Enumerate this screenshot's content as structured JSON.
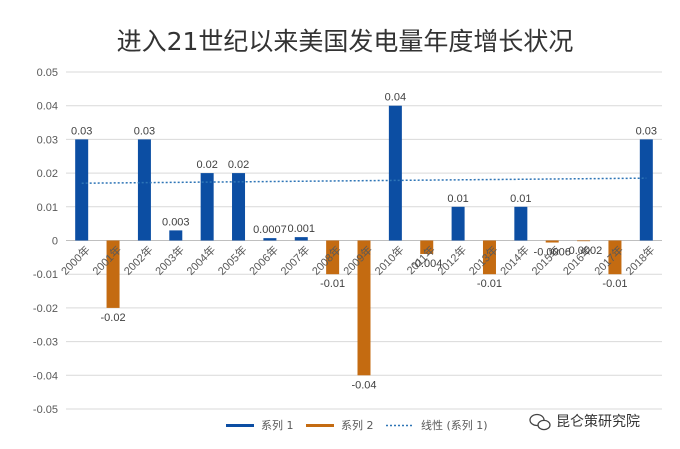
{
  "chart_data": {
    "type": "bar",
    "title": "进入21世纪以来美国发电量年度增长状况",
    "categories": [
      "2000年",
      "2001年",
      "2002年",
      "2003年",
      "2004年",
      "2005年",
      "2006年",
      "2007年",
      "2008年",
      "2009年",
      "2010年",
      "2011年",
      "2012年",
      "2013年",
      "2014年",
      "2015年",
      "2016年",
      "2017年",
      "2018年"
    ],
    "series": [
      {
        "name": "系列 1",
        "color": "#0c4ea3",
        "values": [
          0.03,
          null,
          0.03,
          0.003,
          0.02,
          0.02,
          0.0007,
          0.001,
          null,
          null,
          0.04,
          null,
          0.01,
          null,
          0.01,
          null,
          null,
          null,
          0.03
        ],
        "labels": [
          "0.03",
          null,
          "0.03",
          "0.003",
          "0.02",
          "0.02",
          "0.0007",
          "0.001",
          null,
          null,
          "0.04",
          null,
          "0.01",
          null,
          "0.01",
          null,
          null,
          null,
          "0.03"
        ]
      },
      {
        "name": "系列 2",
        "color": "#c46b11",
        "values": [
          null,
          -0.02,
          null,
          null,
          null,
          null,
          null,
          null,
          -0.01,
          -0.04,
          null,
          -0.004,
          null,
          -0.01,
          null,
          -0.0006,
          -0.0002,
          -0.01,
          null
        ],
        "labels": [
          null,
          "-0.02",
          null,
          null,
          null,
          null,
          null,
          null,
          "-0.01",
          "-0.04",
          null,
          "-0.004",
          null,
          "-0.01",
          null,
          "-0.0006",
          "-0.0002",
          "-0.01",
          null
        ]
      }
    ],
    "trendline": {
      "name": "线性 (系列 1)",
      "color": "#2e75b6",
      "start": 0.017,
      "end": 0.0185
    },
    "ylim": [
      -0.05,
      0.05
    ],
    "yticks": [
      0.05,
      0.04,
      0.03,
      0.02,
      0.01,
      0,
      -0.01,
      -0.02,
      -0.03,
      -0.04,
      -0.05
    ],
    "ytick_labels": [
      "0.05",
      "0.04",
      "0.03",
      "0.02",
      "0.01",
      "0",
      "-0.01",
      "-0.02",
      "-0.03",
      "-0.04",
      "-0.05"
    ],
    "grid": true,
    "legend_position": "bottom"
  },
  "watermark": {
    "text": "昆仑策研究院"
  }
}
